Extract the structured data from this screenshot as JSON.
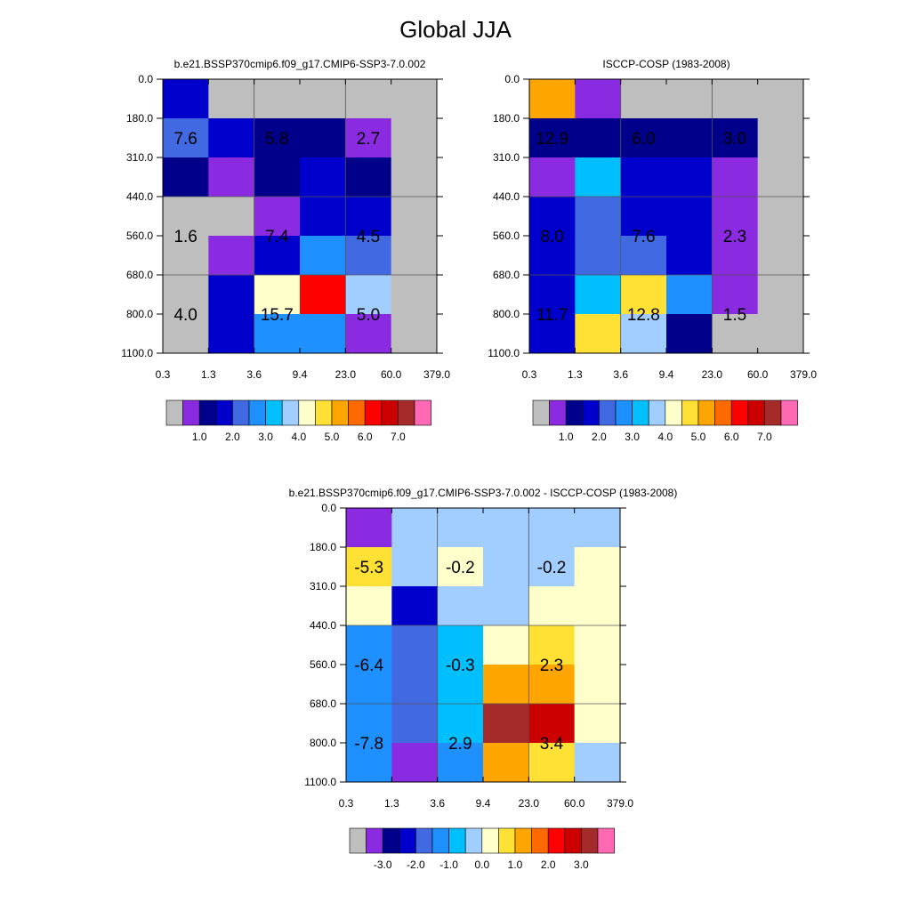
{
  "title": "Global JJA",
  "colors": {
    "table": [
      "#bebebe",
      "#8a2be2",
      "#00008b",
      "#0000cd",
      "#4169e1",
      "#1e90ff",
      "#00bfff",
      "#a2cdff",
      "#ffffcc",
      "#ffe135",
      "#ffa500",
      "#ff6a00",
      "#ff0000",
      "#cd0000",
      "#a52a2a",
      "#ff69b4"
    ]
  },
  "colorbar_abs": {
    "labels": [
      "1.0",
      "2.0",
      "3.0",
      "4.0",
      "5.0",
      "6.0",
      "7.0"
    ]
  },
  "colorbar_diff": {
    "labels": [
      "-3.0",
      "-2.0",
      "-1.0",
      "0.0",
      "1.0",
      "2.0",
      "3.0"
    ]
  },
  "chart_data": [
    {
      "type": "heatmap",
      "title": "b.e21.BSSP370cmip6.f09_g17.CMIP6-SSP3-7.0.002",
      "x_ticks": [
        "0.3",
        "1.3",
        "3.6",
        "9.4",
        "23.0",
        "60.0",
        "379.0"
      ],
      "y_ticks": [
        "0.0",
        "180.0",
        "310.0",
        "440.0",
        "560.0",
        "680.0",
        "800.0",
        "1100.0"
      ],
      "cells": [
        [
          3,
          0,
          0,
          0,
          0,
          0
        ],
        [
          4,
          3,
          2,
          2,
          1,
          0
        ],
        [
          2,
          1,
          2,
          3,
          2,
          0
        ],
        [
          0,
          0,
          1,
          3,
          3,
          0
        ],
        [
          0,
          1,
          3,
          5,
          4,
          0
        ],
        [
          0,
          3,
          8,
          12,
          7,
          0
        ],
        [
          0,
          3,
          5,
          5,
          1,
          0
        ]
      ],
      "annotations": [
        {
          "col": 0.5,
          "row": 1.5,
          "text": "7.6"
        },
        {
          "col": 2.5,
          "row": 1.5,
          "text": "5.8"
        },
        {
          "col": 4.5,
          "row": 1.5,
          "text": "2.7"
        },
        {
          "col": 0.5,
          "row": 4,
          "text": "1.6"
        },
        {
          "col": 2.5,
          "row": 4,
          "text": "7.4"
        },
        {
          "col": 4.5,
          "row": 4,
          "text": "4.5"
        },
        {
          "col": 0.5,
          "row": 6,
          "text": "4.0"
        },
        {
          "col": 2.5,
          "row": 6,
          "text": "15.7"
        },
        {
          "col": 4.5,
          "row": 6,
          "text": "5.0"
        }
      ]
    },
    {
      "type": "heatmap",
      "title": "ISCCP-COSP (1983-2008)",
      "x_ticks": [
        "0.3",
        "1.3",
        "3.6",
        "9.4",
        "23.0",
        "60.0",
        "379.0"
      ],
      "y_ticks": [
        "0.0",
        "180.0",
        "310.0",
        "440.0",
        "560.0",
        "680.0",
        "800.0",
        "1100.0"
      ],
      "cells": [
        [
          10,
          1,
          0,
          0,
          0,
          0
        ],
        [
          2,
          2,
          2,
          2,
          2,
          0
        ],
        [
          1,
          6,
          3,
          3,
          1,
          0
        ],
        [
          3,
          4,
          3,
          3,
          1,
          0
        ],
        [
          3,
          4,
          4,
          3,
          1,
          0
        ],
        [
          3,
          6,
          9,
          5,
          1,
          0
        ],
        [
          3,
          9,
          7,
          2,
          0,
          0
        ]
      ],
      "annotations": [
        {
          "col": 0.5,
          "row": 1.5,
          "text": "12.9"
        },
        {
          "col": 2.5,
          "row": 1.5,
          "text": "6.0"
        },
        {
          "col": 4.5,
          "row": 1.5,
          "text": "3.0"
        },
        {
          "col": 0.5,
          "row": 4,
          "text": "8.0"
        },
        {
          "col": 2.5,
          "row": 4,
          "text": "7.6"
        },
        {
          "col": 4.5,
          "row": 4,
          "text": "2.3"
        },
        {
          "col": 0.5,
          "row": 6,
          "text": "11.7"
        },
        {
          "col": 2.5,
          "row": 6,
          "text": "12.8"
        },
        {
          "col": 4.5,
          "row": 6,
          "text": "1.5"
        }
      ]
    },
    {
      "type": "heatmap",
      "title": "b.e21.BSSP370cmip6.f09_g17.CMIP6-SSP3-7.0.002 - ISCCP-COSP (1983-2008)",
      "x_ticks": [
        "0.3",
        "1.3",
        "3.6",
        "9.4",
        "23.0",
        "60.0",
        "379.0"
      ],
      "y_ticks": [
        "0.0",
        "180.0",
        "310.0",
        "440.0",
        "560.0",
        "680.0",
        "800.0",
        "1100.0"
      ],
      "cells": [
        [
          1,
          7,
          7,
          7,
          7,
          7
        ],
        [
          9,
          7,
          8,
          7,
          7,
          8
        ],
        [
          8,
          3,
          7,
          7,
          8,
          8
        ],
        [
          5,
          4,
          6,
          8,
          9,
          8
        ],
        [
          5,
          4,
          6,
          10,
          10,
          8
        ],
        [
          5,
          4,
          6,
          14,
          13,
          8
        ],
        [
          5,
          1,
          5,
          10,
          9,
          7
        ]
      ],
      "annotations": [
        {
          "col": 0.5,
          "row": 1.5,
          "text": "-5.3"
        },
        {
          "col": 2.5,
          "row": 1.5,
          "text": "-0.2"
        },
        {
          "col": 4.5,
          "row": 1.5,
          "text": "-0.2"
        },
        {
          "col": 0.5,
          "row": 4,
          "text": "-6.4"
        },
        {
          "col": 2.5,
          "row": 4,
          "text": "-0.3"
        },
        {
          "col": 4.5,
          "row": 4,
          "text": "2.3"
        },
        {
          "col": 0.5,
          "row": 6,
          "text": "-7.8"
        },
        {
          "col": 2.5,
          "row": 6,
          "text": "2.9"
        },
        {
          "col": 4.5,
          "row": 6,
          "text": "3.4"
        }
      ]
    }
  ]
}
